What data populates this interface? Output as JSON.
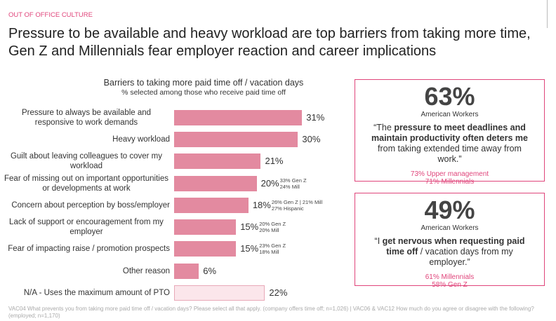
{
  "header": {
    "label": "OUT OF OFFICE CULTURE",
    "title_lines": [
      "Pressure to be available and heavy workload are top barriers from taking more time,",
      "Gen Z and Millennials fear employer reaction and career implications"
    ]
  },
  "chart_data": {
    "type": "hbar",
    "title": "Barriers to taking more paid time off / vacation days",
    "subtitle": "% selected among those who receive paid time off",
    "categories": [
      "Pressure to always be available and responsive to work demands",
      "Heavy workload",
      "Guilt about leaving colleagues to cover my workload",
      "Fear of missing out on important opportunities or developments at work",
      "Concern about perception by boss/employer",
      "Lack of support or encouragement from my employer",
      "Fear of impacting raise / promotion prospects",
      "Other reason",
      "N/A - Uses the maximum amount of PTO"
    ],
    "values": [
      31,
      30,
      21,
      20,
      18,
      15,
      15,
      6,
      22
    ],
    "value_labels": [
      "31%",
      "30%",
      "21%",
      "20%",
      "18%",
      "15%",
      "15%",
      "6%",
      "22%"
    ],
    "colors": [
      "#e38aa0",
      "#e38aa0",
      "#e38aa0",
      "#e38aa0",
      "#e38aa0",
      "#e38aa0",
      "#e38aa0",
      "#e38aa0",
      "#fbe6eb"
    ],
    "annotations": [
      null,
      null,
      null,
      [
        "33% Gen Z",
        "24% Mill"
      ],
      [
        "26% Gen Z | 21% Mill",
        "27% Hispanic"
      ],
      [
        "20% Gen Z",
        "20% Mill"
      ],
      [
        "23% Gen Z",
        "18% Mill"
      ],
      null,
      null
    ],
    "xlim": [
      0,
      50
    ]
  },
  "callouts": [
    {
      "stat": "63%",
      "label": "American Workers",
      "quote": [
        {
          "text": "“The ",
          "bold": false
        },
        {
          "text": "pressure to meet deadlines and maintain productivity often deters me",
          "bold": true
        },
        {
          "text": " from taking extended time away from work.”",
          "bold": false
        }
      ],
      "details": [
        "73% Upper management",
        "71% Millennials"
      ]
    },
    {
      "stat": "49%",
      "label": "American Workers",
      "quote": [
        {
          "text": "“I ",
          "bold": false
        },
        {
          "text": "get nervous when requesting paid time off",
          "bold": true
        },
        {
          "text": " / vacation days from my employer.”",
          "bold": false
        }
      ],
      "details": [
        "61% Millennials",
        "58% Gen Z"
      ]
    }
  ],
  "footnote": "VAC04 What prevents you from taking more paid time off / vacation days? Please select all that apply. (company offers time off; n=1,026) | VAC06 & VAC12 How much do you agree or disagree with the following? (employed; n=1,170)"
}
